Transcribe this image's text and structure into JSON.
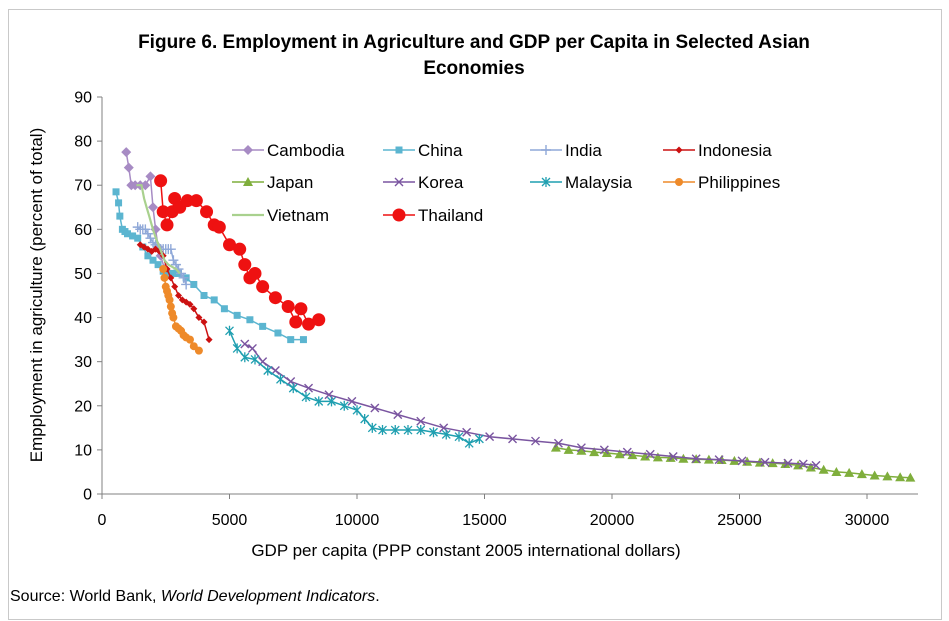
{
  "chart_data": {
    "type": "scatter",
    "title_line1": "Figure 6. Employment in Agriculture and GDP per Capita in Selected Asian",
    "title_line2": "Economies",
    "xlabel": "GDP per capita (PPP constant 2005 international dollars)",
    "ylabel": "Empployment in agriculture (percent of total)",
    "xlim": [
      0,
      32000
    ],
    "ylim": [
      0,
      90
    ],
    "x_ticks": [
      0,
      5000,
      10000,
      15000,
      20000,
      25000,
      30000
    ],
    "y_ticks": [
      0,
      10,
      20,
      30,
      40,
      50,
      60,
      70,
      80,
      90
    ],
    "x_tick_labels": [
      "0",
      "5000",
      "10000",
      "15000",
      "20000",
      "25000",
      "30000"
    ],
    "y_tick_labels": [
      "0",
      "10",
      "20",
      "30",
      "40",
      "50",
      "60",
      "70",
      "80",
      "90"
    ],
    "grid": false,
    "legend_position": "top-center",
    "series": [
      {
        "name": "Cambodia",
        "color": "#a78bc4",
        "marker": "diamond",
        "x": [
          950,
          1050,
          1150,
          1300,
          1500,
          1700,
          1900,
          2000,
          2100,
          2200,
          2300,
          2450
        ],
        "y": [
          77.5,
          74,
          70,
          70,
          70,
          70,
          72,
          65,
          60,
          56,
          54,
          51
        ]
      },
      {
        "name": "China",
        "color": "#5bb5d0",
        "marker": "square",
        "x": [
          550,
          650,
          700,
          800,
          900,
          1000,
          1200,
          1400,
          1600,
          1800,
          2000,
          2200,
          2400,
          2600,
          2800,
          3000,
          3300,
          3600,
          4000,
          4400,
          4800,
          5300,
          5800,
          6300,
          6900,
          7400,
          7900
        ],
        "y": [
          68.5,
          66,
          63,
          60,
          59.5,
          59,
          58.5,
          58,
          56,
          54,
          53,
          52,
          50.5,
          50,
          50,
          50,
          49,
          47.5,
          45,
          44,
          42,
          40.5,
          39.5,
          38,
          36.5,
          35,
          35
        ]
      },
      {
        "name": "India",
        "color": "#8fa8d8",
        "marker": "plus",
        "x": [
          1400,
          1500,
          1600,
          1700,
          1800,
          1900,
          2000,
          2100,
          2200,
          2300,
          2400,
          2500,
          2600,
          2700,
          2800,
          2900,
          3000,
          3100,
          3200,
          3300
        ],
        "y": [
          60.5,
          60,
          60,
          60,
          59,
          58,
          57,
          56.5,
          56,
          55.5,
          55.5,
          55.5,
          55.5,
          55.5,
          53,
          52,
          51,
          50,
          49,
          47.5
        ]
      },
      {
        "name": "Indonesia",
        "color": "#cc1111",
        "marker": "small-diamond",
        "x": [
          1500,
          1650,
          1800,
          1950,
          2100,
          2250,
          2400,
          2550,
          2700,
          2850,
          3000,
          3150,
          3300,
          3450,
          3600,
          3800,
          4000,
          4200
        ],
        "y": [
          56.5,
          56,
          55.5,
          55,
          55.5,
          55,
          54,
          51,
          49,
          47,
          45,
          44,
          43.5,
          43,
          42,
          40,
          39,
          35
        ]
      },
      {
        "name": "Japan",
        "color": "#7fae3c",
        "marker": "triangle",
        "x": [
          17800,
          18300,
          18800,
          19300,
          19800,
          20300,
          20800,
          21300,
          21800,
          22300,
          22800,
          23300,
          23800,
          24300,
          24800,
          25300,
          25800,
          26300,
          26800,
          27300,
          27800,
          28300,
          28800,
          29300,
          29800,
          30300,
          30800,
          31300,
          31700
        ],
        "y": [
          10.5,
          10,
          9.8,
          9.5,
          9.3,
          9,
          8.8,
          8.5,
          8.3,
          8.2,
          8,
          7.9,
          7.8,
          7.7,
          7.5,
          7.3,
          7.1,
          7,
          6.8,
          6.5,
          6,
          5.5,
          5,
          4.8,
          4.5,
          4.2,
          4,
          3.8,
          3.7
        ]
      },
      {
        "name": "Korea",
        "color": "#7a55a0",
        "marker": "x",
        "x": [
          5600,
          5900,
          6300,
          6800,
          7400,
          8100,
          8900,
          9800,
          10700,
          11600,
          12500,
          13400,
          14300,
          15200,
          16100,
          17000,
          17900,
          18800,
          19700,
          20600,
          21500,
          22400,
          23300,
          24200,
          25100,
          26000,
          26900,
          27500,
          28000
        ],
        "y": [
          34,
          33,
          30,
          28,
          25.5,
          24,
          22.5,
          21,
          19.5,
          18,
          16.5,
          15,
          14,
          13,
          12.5,
          12,
          11.5,
          10.5,
          10,
          9.5,
          9,
          8.5,
          8,
          7.8,
          7.5,
          7.2,
          7,
          6.8,
          6.5
        ]
      },
      {
        "name": "Malaysia",
        "color": "#1f9fb0",
        "marker": "asterisk",
        "x": [
          5000,
          5300,
          5600,
          6000,
          6500,
          7000,
          7500,
          8000,
          8500,
          9000,
          9500,
          10000,
          10300,
          10600,
          11000,
          11500,
          12000,
          12500,
          13000,
          13500,
          14000,
          14400,
          14800
        ],
        "y": [
          37,
          33,
          31,
          30.5,
          28,
          26,
          24,
          22,
          21,
          21,
          20,
          19,
          17,
          15,
          14.5,
          14.5,
          14.5,
          14.5,
          14,
          13.5,
          13,
          11.5,
          12.5
        ]
      },
      {
        "name": "Philippines",
        "color": "#ee8a2a",
        "marker": "circle",
        "x": [
          2400,
          2450,
          2500,
          2550,
          2600,
          2650,
          2700,
          2750,
          2800,
          2900,
          3000,
          3100,
          3200,
          3300,
          3450,
          3600,
          3800
        ],
        "y": [
          51,
          49,
          47,
          46,
          45,
          44,
          42.5,
          41,
          40,
          38,
          37.5,
          37,
          36,
          35.5,
          35,
          33.5,
          32.5
        ]
      },
      {
        "name": "Vietnam",
        "color": "#a9d18e",
        "marker": "line",
        "x": [
          1350,
          1450,
          1550,
          1650,
          1750,
          1850,
          1950,
          2050,
          2150,
          2250,
          2350,
          2450,
          2600,
          2750,
          2900,
          3050
        ],
        "y": [
          70,
          70,
          70,
          67,
          65,
          63,
          61,
          59,
          57.5,
          56,
          54.5,
          53,
          52,
          51.5,
          51,
          50
        ]
      },
      {
        "name": "Thailand",
        "color": "#ee1111",
        "marker": "big-circle",
        "x": [
          2300,
          2400,
          2550,
          2750,
          2850,
          3050,
          3350,
          3700,
          4100,
          4400,
          4600,
          5000,
          5400,
          5600,
          5800,
          6000,
          6300,
          6800,
          7300,
          7600,
          7800,
          8100,
          8500
        ],
        "y": [
          71,
          64,
          61,
          64,
          67,
          65,
          66.5,
          66.5,
          64,
          61,
          60.5,
          56.5,
          55.5,
          52,
          49,
          50,
          47,
          44.5,
          42.5,
          39,
          42,
          38.5,
          39.5
        ]
      }
    ]
  },
  "source": {
    "prefix": "Source: World Bank, ",
    "publication": "World Development Indicators",
    "suffix": "."
  }
}
